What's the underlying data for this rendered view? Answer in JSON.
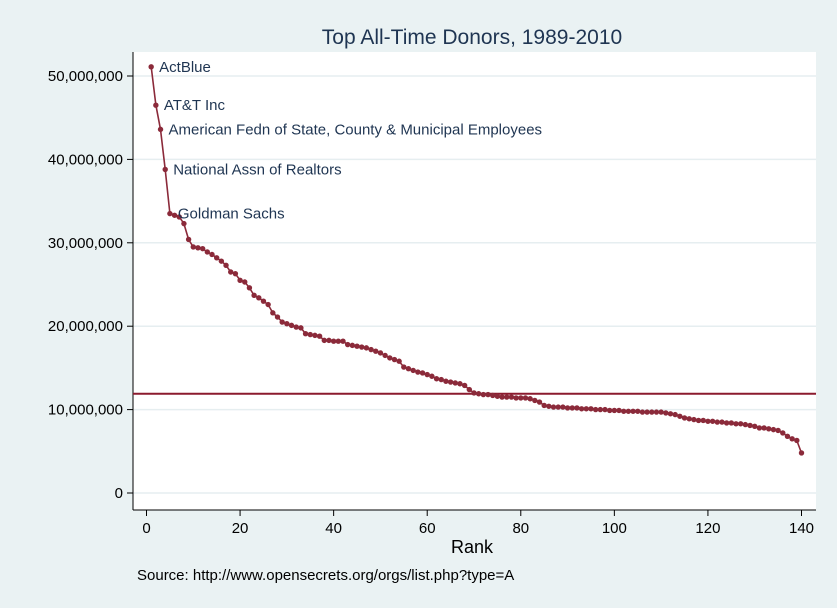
{
  "chart_data": {
    "type": "line",
    "title": "Top All-Time Donors, 1989-2010",
    "xlabel": "Rank",
    "ylabel": "",
    "note": "Source: http://www.opensecrets.org/orgs/list.php?type=A",
    "xlim": [
      0,
      140
    ],
    "ylim": [
      0,
      52000000
    ],
    "x_ticks": [
      0,
      20,
      40,
      60,
      80,
      100,
      120,
      140
    ],
    "x_tick_labels": [
      "0",
      "20",
      "40",
      "60",
      "80",
      "100",
      "120",
      "140"
    ],
    "y_ticks": [
      0,
      10000000,
      20000000,
      30000000,
      40000000,
      50000000
    ],
    "y_tick_labels": [
      "0",
      "10,000,000",
      "20,000,000",
      "30,000,000",
      "40,000,000",
      "50,000,000"
    ],
    "grid": true,
    "reference_line": {
      "y": 11900000,
      "color": "#8b1a2e"
    },
    "colors": {
      "series": "#8b2a3a",
      "background": "#eaf2f3",
      "plot_bg": "#ffffff",
      "text": "#1f3552"
    },
    "series": [
      {
        "x": [
          1,
          2,
          3,
          4,
          5,
          6,
          7,
          8,
          9,
          10,
          11,
          12,
          13,
          14,
          15,
          16,
          17,
          18,
          19,
          20,
          21,
          22,
          23,
          24,
          25,
          26,
          27,
          28,
          29,
          30,
          31,
          32,
          33,
          34,
          35,
          36,
          37,
          38,
          39,
          40,
          41,
          42,
          43,
          44,
          45,
          46,
          47,
          48,
          49,
          50,
          51,
          52,
          53,
          54,
          55,
          56,
          57,
          58,
          59,
          60,
          61,
          62,
          63,
          64,
          65,
          66,
          67,
          68,
          69,
          70,
          71,
          72,
          73,
          74,
          75,
          76,
          77,
          78,
          79,
          80,
          81,
          82,
          83,
          84,
          85,
          86,
          87,
          88,
          89,
          90,
          91,
          92,
          93,
          94,
          95,
          96,
          97,
          98,
          99,
          100,
          101,
          102,
          103,
          104,
          105,
          106,
          107,
          108,
          109,
          110,
          111,
          112,
          113,
          114,
          115,
          116,
          117,
          118,
          119,
          120,
          121,
          122,
          123,
          124,
          125,
          126,
          127,
          128,
          129,
          130,
          131,
          132,
          133,
          134,
          135,
          136,
          137,
          138,
          139,
          140
        ],
        "y": [
          51100000,
          46500000,
          43600000,
          38800000,
          33500000,
          33300000,
          33100000,
          32300000,
          30400000,
          29500000,
          29400000,
          29300000,
          28900000,
          28600000,
          28200000,
          27800000,
          27300000,
          26500000,
          26300000,
          25500000,
          25300000,
          24600000,
          23700000,
          23400000,
          23000000,
          22600000,
          21600000,
          21100000,
          20500000,
          20300000,
          20100000,
          19900000,
          19800000,
          19100000,
          19000000,
          18900000,
          18800000,
          18300000,
          18300000,
          18200000,
          18200000,
          18200000,
          17800000,
          17700000,
          17600000,
          17500000,
          17400000,
          17200000,
          17000000,
          16800000,
          16500000,
          16200000,
          16000000,
          15800000,
          15100000,
          14900000,
          14700000,
          14500000,
          14400000,
          14200000,
          14000000,
          13700000,
          13600000,
          13400000,
          13300000,
          13200000,
          13100000,
          12900000,
          12400000,
          12000000,
          11900000,
          11800000,
          11800000,
          11700000,
          11600000,
          11500000,
          11500000,
          11500000,
          11400000,
          11400000,
          11400000,
          11300000,
          11100000,
          10900000,
          10500000,
          10400000,
          10300000,
          10300000,
          10300000,
          10200000,
          10200000,
          10200000,
          10100000,
          10100000,
          10100000,
          10000000,
          10000000,
          10000000,
          9900000,
          9900000,
          9900000,
          9800000,
          9800000,
          9800000,
          9800000,
          9700000,
          9700000,
          9700000,
          9700000,
          9700000,
          9600000,
          9500000,
          9400000,
          9200000,
          9000000,
          8900000,
          8800000,
          8700000,
          8700000,
          8600000,
          8600000,
          8500000,
          8500000,
          8400000,
          8400000,
          8300000,
          8300000,
          8200000,
          8100000,
          8000000,
          7800000,
          7800000,
          7700000,
          7600000,
          7500000,
          7200000,
          6800000,
          6500000,
          6300000,
          4800000
        ]
      }
    ],
    "annotations": [
      {
        "x": 1,
        "y": 51100000,
        "label": "ActBlue"
      },
      {
        "x": 2,
        "y": 46500000,
        "label": "AT&T Inc"
      },
      {
        "x": 3,
        "y": 43600000,
        "label": "American Fedn of State, County & Municipal Employees"
      },
      {
        "x": 4,
        "y": 38800000,
        "label": "National Assn of Realtors"
      },
      {
        "x": 5,
        "y": 33500000,
        "label": "Goldman Sachs"
      }
    ]
  }
}
